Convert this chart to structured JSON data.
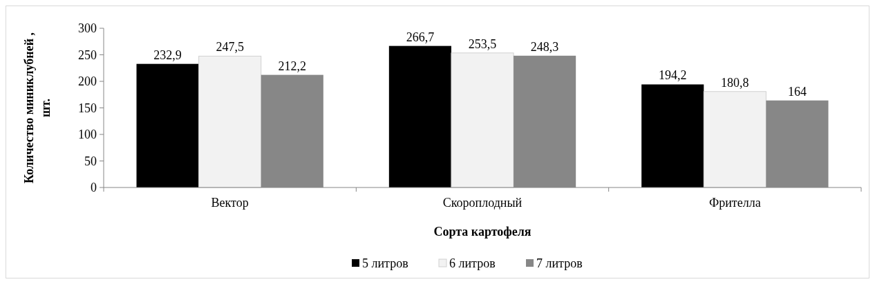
{
  "chart_data": {
    "type": "bar",
    "xlabel": "Сорта картофеля",
    "ylabel": "Количество миниклубней , шт.",
    "categories": [
      "Вектор",
      "Скороплодный",
      "Фрителла"
    ],
    "series": [
      {
        "name": "5 литров",
        "color": "#000000",
        "values": [
          232.9,
          266.7,
          194.2
        ],
        "value_labels": [
          "232,9",
          "266,7",
          "194,2"
        ]
      },
      {
        "name": "6 литров",
        "color": "#f2f2f2",
        "values": [
          247.5,
          253.5,
          180.8
        ],
        "value_labels": [
          "247,5",
          "253,5",
          "180,8"
        ]
      },
      {
        "name": "7 литров",
        "color": "#878787",
        "values": [
          212.2,
          248.3,
          164
        ],
        "value_labels": [
          "212,2",
          "248,3",
          "164"
        ]
      }
    ],
    "ylim": [
      0,
      300
    ],
    "yticks": [
      0,
      50,
      100,
      150,
      200,
      250,
      300
    ],
    "grid": false,
    "legend": "bottom"
  }
}
